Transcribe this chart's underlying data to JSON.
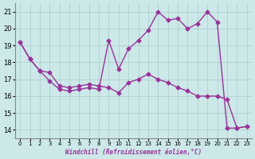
{
  "xlabel": "Windchill (Refroidissement éolien,°C)",
  "background_color": "#cce8e8",
  "line_color": "#993399",
  "marker": "D",
  "markersize": 2.5,
  "linewidth": 1.0,
  "xlim": [
    -0.5,
    23.5
  ],
  "ylim": [
    13.5,
    21.5
  ],
  "yticks": [
    14,
    15,
    16,
    17,
    18,
    19,
    20,
    21
  ],
  "xticks": [
    0,
    1,
    2,
    3,
    4,
    5,
    6,
    7,
    8,
    9,
    10,
    11,
    12,
    13,
    14,
    15,
    16,
    17,
    18,
    19,
    20,
    21,
    22,
    23
  ],
  "grid_color": "#aacccc",
  "series": [
    {
      "x": [
        0,
        1,
        2,
        3,
        4,
        5,
        6,
        7,
        8,
        9,
        10,
        11,
        12,
        13,
        14,
        15,
        16,
        17,
        18,
        19,
        20,
        21,
        22,
        23
      ],
      "y": [
        19.2,
        18.2,
        17.5,
        17.4,
        16.6,
        16.5,
        16.6,
        16.7,
        16.6,
        16.5,
        16.2,
        16.8,
        17.0,
        17.3,
        17.0,
        16.8,
        16.5,
        16.3,
        16.0,
        16.0,
        16.0,
        15.8,
        14.1,
        14.2
      ]
    },
    {
      "x": [
        0,
        1,
        2,
        3,
        4,
        5,
        6,
        7,
        8,
        9,
        10,
        11,
        12,
        13,
        14,
        15,
        16,
        17,
        18,
        19,
        20,
        21,
        22,
        23
      ],
      "y": [
        19.2,
        18.2,
        17.5,
        16.9,
        16.4,
        16.3,
        16.4,
        16.5,
        16.4,
        19.3,
        17.6,
        18.8,
        19.3,
        19.9,
        21.0,
        20.5,
        20.6,
        20.0,
        20.3,
        21.0,
        20.4,
        14.1,
        14.1,
        14.2
      ]
    }
  ]
}
